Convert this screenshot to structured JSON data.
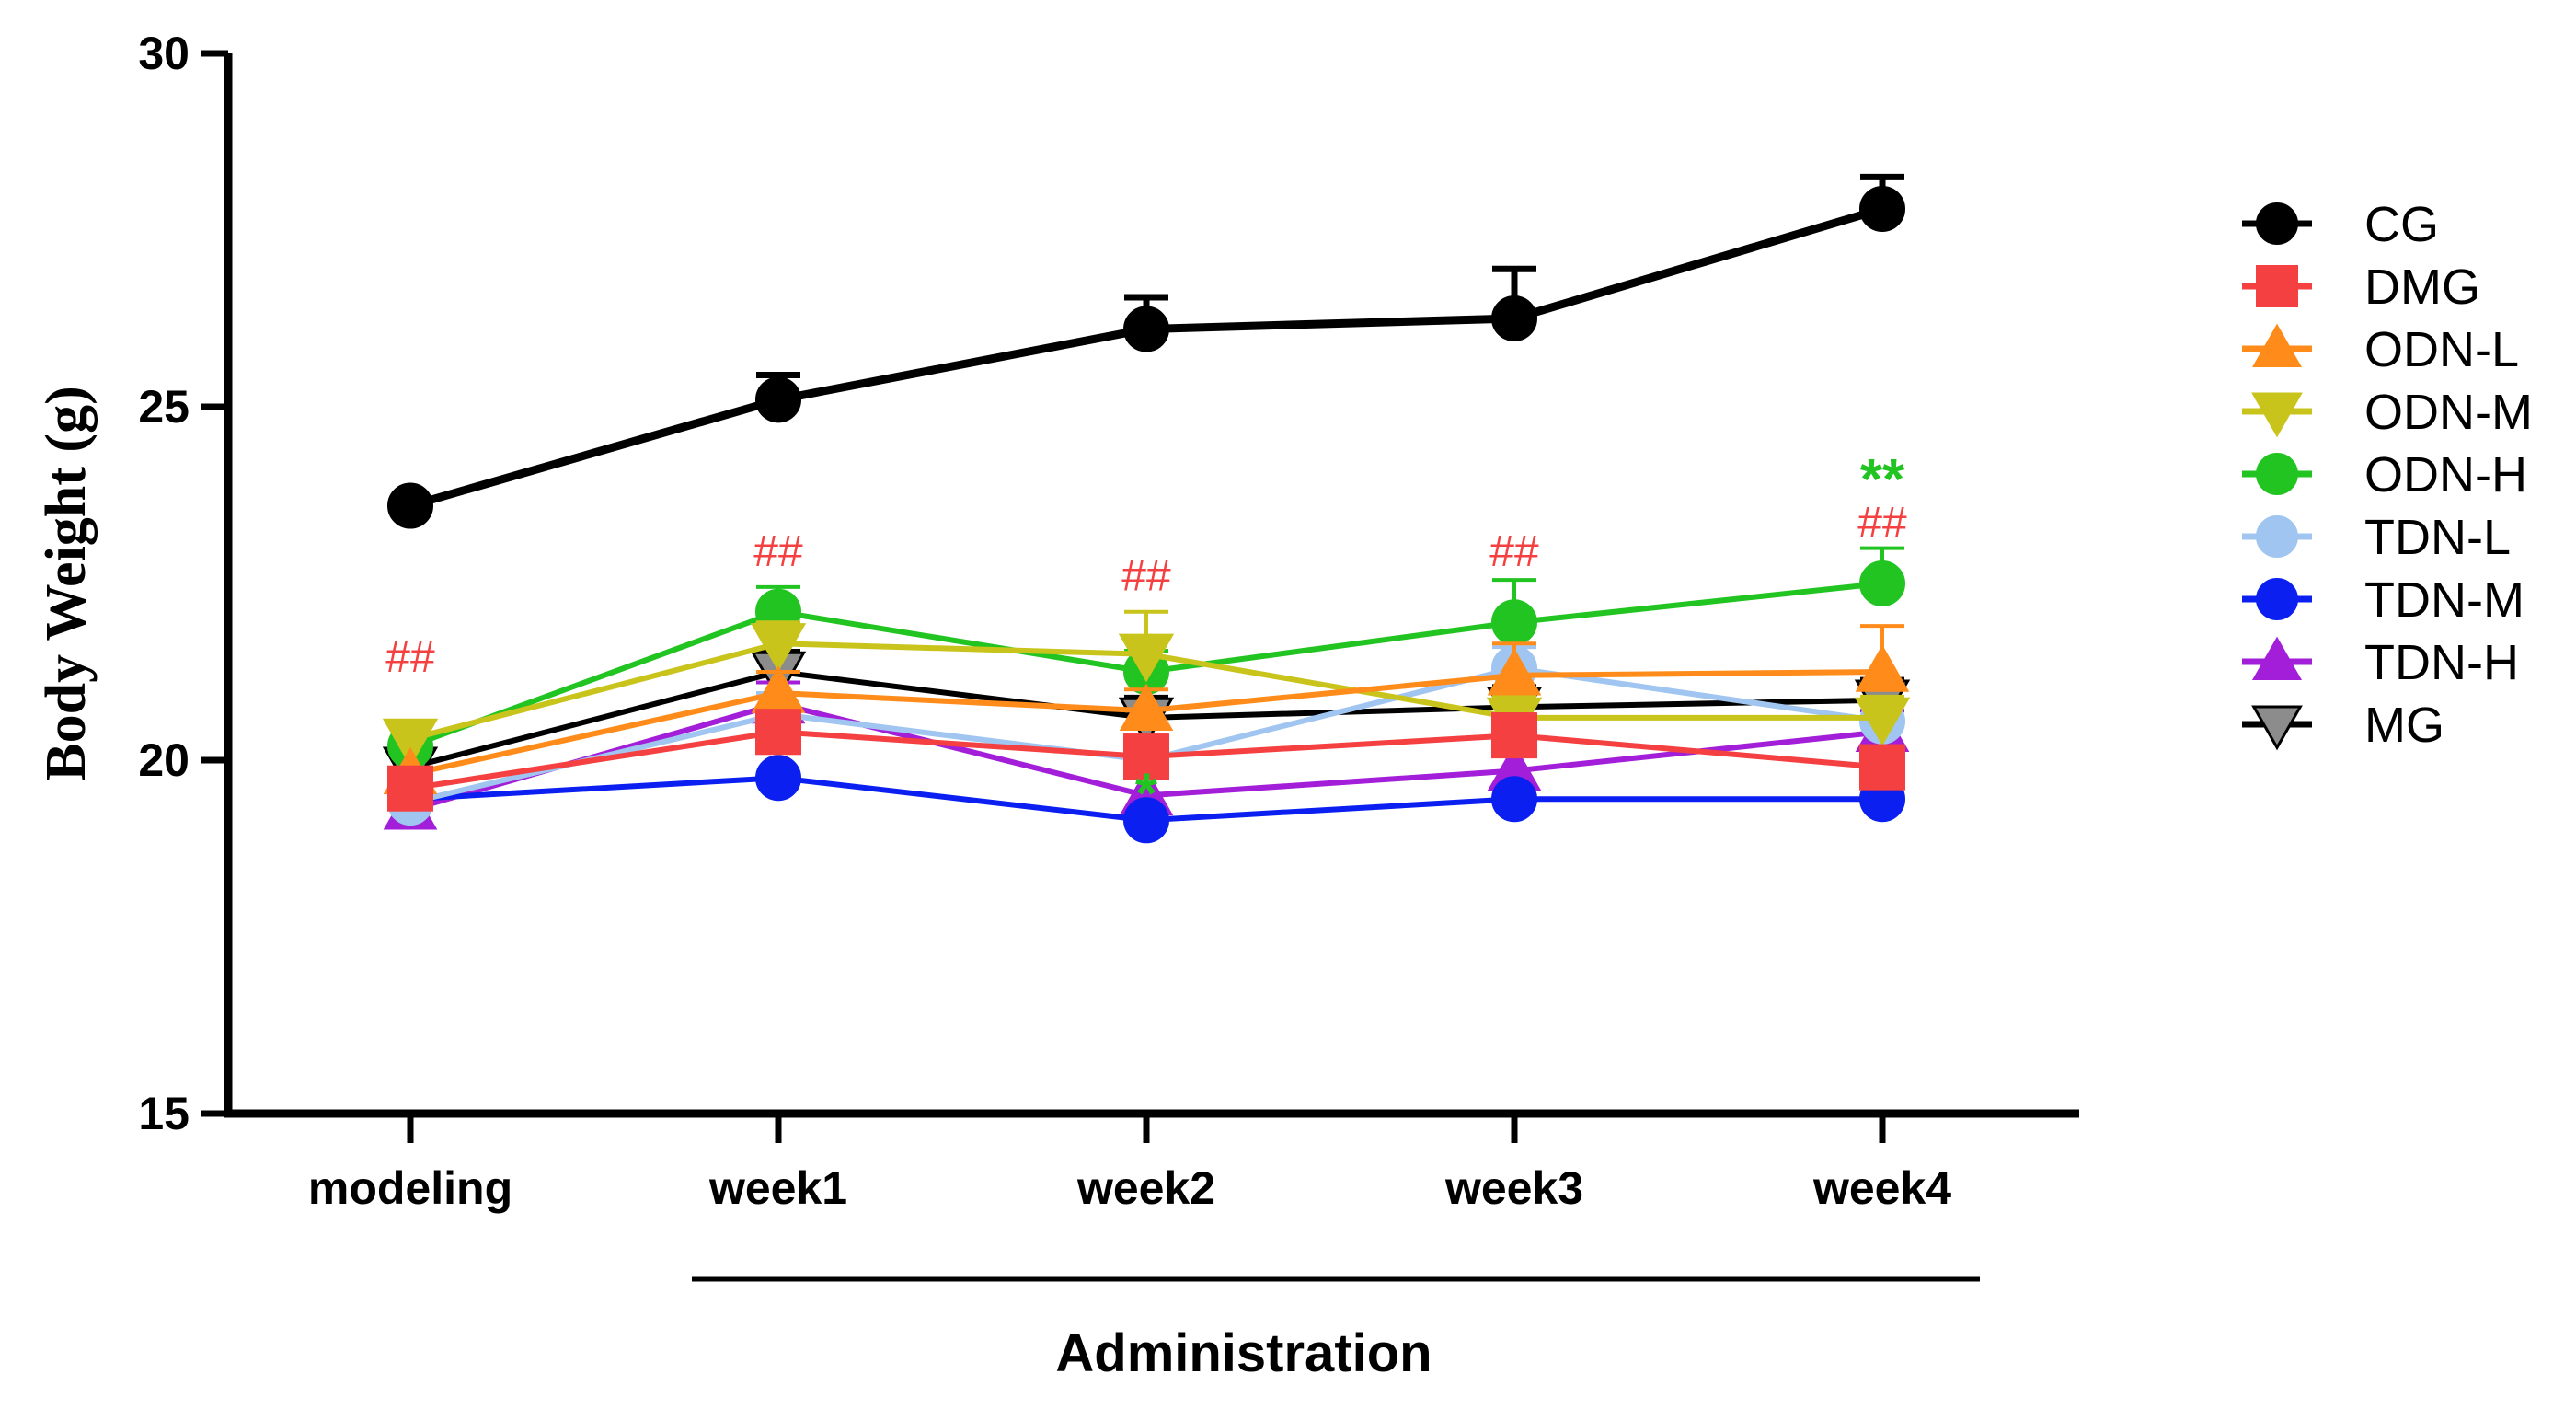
{
  "chart_data": {
    "type": "line",
    "title": "",
    "xlabel": "Administration",
    "ylabel": "Body Weight (g)",
    "categories": [
      "modeling",
      "week1",
      "week2",
      "week3",
      "week4"
    ],
    "ylim": [
      15,
      30
    ],
    "yticks": [
      15,
      20,
      25,
      30
    ],
    "x_group": {
      "label": "Administration",
      "from": "week1",
      "to": "week4"
    },
    "series": [
      {
        "name": "CG",
        "color": "#000000",
        "marker": "circle",
        "values": [
          23.6,
          25.1,
          26.1,
          26.25,
          27.8
        ],
        "errors": [
          0.0,
          0.35,
          0.45,
          0.7,
          0.45
        ]
      },
      {
        "name": "DMG",
        "color": "#f44040",
        "marker": "square",
        "values": [
          19.6,
          20.4,
          20.05,
          20.35,
          19.9
        ],
        "errors": [
          0.0,
          0.3,
          0.3,
          0.3,
          0.3
        ]
      },
      {
        "name": "ODN-L",
        "color": "#ff8c1a",
        "marker": "triangle-up",
        "values": [
          19.8,
          20.95,
          20.7,
          21.2,
          21.25
        ],
        "errors": [
          0.0,
          0.3,
          0.3,
          0.45,
          0.65
        ]
      },
      {
        "name": "ODN-M",
        "color": "#c8c41c",
        "marker": "triangle-down",
        "values": [
          20.3,
          21.65,
          21.5,
          20.6,
          20.6
        ],
        "errors": [
          0.0,
          0.3,
          0.6,
          0.3,
          0.3
        ]
      },
      {
        "name": "ODN-H",
        "color": "#22c422",
        "marker": "circle",
        "values": [
          20.2,
          22.1,
          21.25,
          21.95,
          22.5
        ],
        "errors": [
          0.0,
          0.35,
          0.3,
          0.6,
          0.5
        ]
      },
      {
        "name": "TDN-L",
        "color": "#9fc5f0",
        "marker": "circle",
        "values": [
          19.4,
          20.65,
          20.0,
          21.3,
          20.55
        ],
        "errors": [
          0.0,
          0.3,
          0.3,
          0.3,
          0.3
        ]
      },
      {
        "name": "TDN-M",
        "color": "#0a1ff0",
        "marker": "circle",
        "values": [
          19.45,
          19.75,
          19.15,
          19.45,
          19.45
        ],
        "errors": [
          0.0,
          0.0,
          0.0,
          0.0,
          0.0
        ]
      },
      {
        "name": "TDN-H",
        "color": "#a21ed8",
        "marker": "triangle-up",
        "values": [
          19.3,
          20.8,
          19.5,
          19.85,
          20.4
        ],
        "errors": [
          0.0,
          0.3,
          0.3,
          0.3,
          0.3
        ]
      },
      {
        "name": "MG",
        "color": "#000000",
        "fill": "#8c8c8c",
        "marker": "triangle-down",
        "values": [
          19.9,
          21.25,
          20.6,
          20.75,
          20.85
        ],
        "errors": [
          0.0,
          0.3,
          0.3,
          0.3,
          0.3
        ]
      }
    ],
    "annotations": [
      {
        "text": "##",
        "category": "modeling",
        "y": 21.25,
        "color": "#f44040",
        "style": "normal"
      },
      {
        "text": "##",
        "category": "week1",
        "y": 22.75,
        "color": "#f44040",
        "style": "normal"
      },
      {
        "text": "##",
        "category": "week2",
        "y": 22.4,
        "color": "#f44040",
        "style": "normal"
      },
      {
        "text": "##",
        "category": "week3",
        "y": 22.75,
        "color": "#f44040",
        "style": "normal"
      },
      {
        "text": "##",
        "category": "week4",
        "y": 23.15,
        "color": "#f44040",
        "style": "normal"
      },
      {
        "text": "**",
        "category": "week4",
        "y": 23.7,
        "color": "#22c422",
        "style": "bold"
      },
      {
        "text": "*",
        "category": "week2",
        "y": 19.25,
        "color": "#22c422",
        "style": "bold"
      }
    ]
  }
}
